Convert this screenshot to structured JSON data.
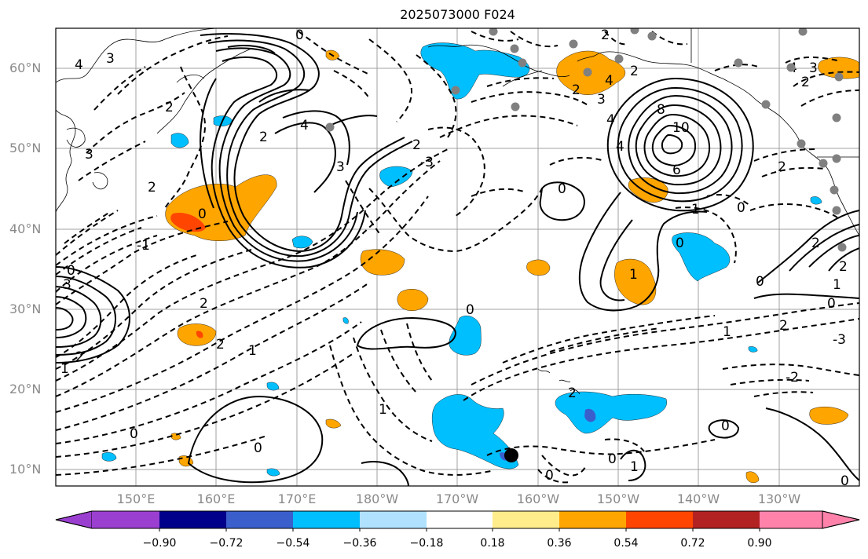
{
  "title": "2025073000 F024",
  "lat_labels": [
    "60°N",
    "50°N",
    "40°N",
    "30°N",
    "20°N",
    "10°N"
  ],
  "lon_labels": [
    "150°E",
    "160°E",
    "170°E",
    "180°W",
    "170°W",
    "160°W",
    "150°W",
    "140°W",
    "130°W"
  ],
  "colorbar": {
    "ticks": [
      "−0.90",
      "−0.72",
      "−0.54",
      "−0.36",
      "−0.18",
      "0.18",
      "0.36",
      "0.54",
      "0.72",
      "0.90"
    ],
    "colors": [
      "#9b3fd1",
      "#00008b",
      "#3a5fcd",
      "#00bfff",
      "#b0e2ff",
      "#ffffff",
      "#ffec8b",
      "#ffa500",
      "#ff4500",
      "#b22222",
      "#ff82ab"
    ]
  },
  "contour_labels": [
    "0",
    "2",
    "3",
    "4",
    "8",
    "10",
    "6",
    "1",
    "-1",
    "-2",
    "-3"
  ],
  "colors": {
    "positive_anomaly": "#ffa500",
    "strong_positive": "#ff4500",
    "negative_anomaly": "#00bfff",
    "strong_negative": "#3a5fcd",
    "station_marker": "#808080"
  }
}
